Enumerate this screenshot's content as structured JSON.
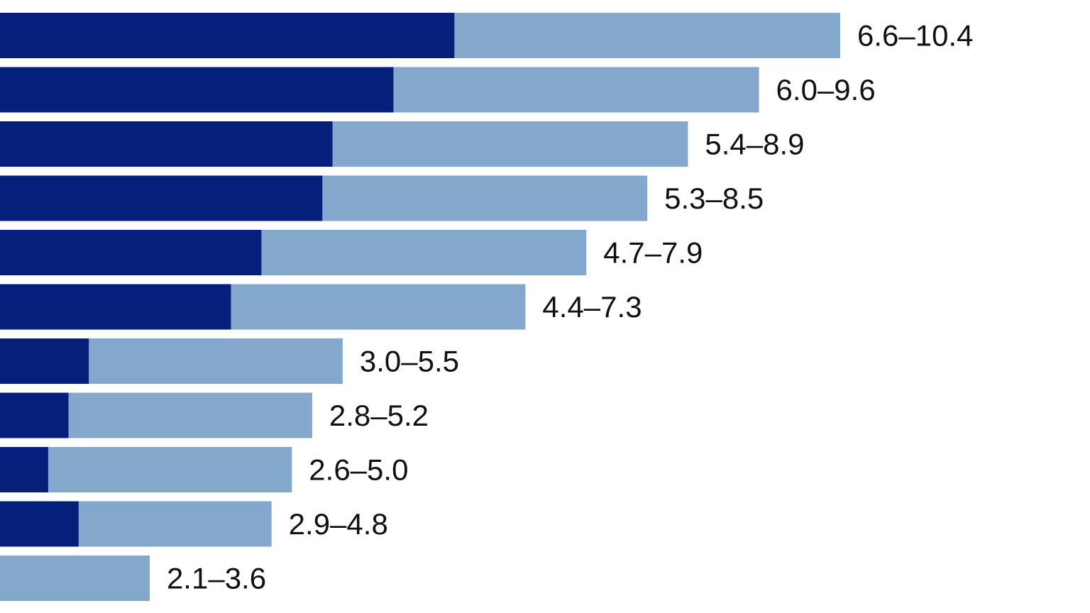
{
  "chart_data": {
    "type": "bar",
    "orientation": "horizontal",
    "stacked": false,
    "title": "",
    "xlabel": "",
    "ylabel": "",
    "grid": false,
    "legend": "none",
    "xlim": [
      2.0,
      10.4
    ],
    "series": [
      {
        "color": "#061f7a",
        "values": [
          6.6,
          6.0,
          5.4,
          5.3,
          4.7,
          4.4,
          3.0,
          2.8,
          2.6,
          2.9,
          2.1
        ]
      },
      {
        "color": "#84a8cb",
        "values": [
          10.4,
          9.6,
          8.9,
          8.5,
          7.9,
          7.3,
          5.5,
          5.2,
          5.0,
          4.8,
          3.6
        ]
      }
    ],
    "data_labels": [
      "6.6–10.4",
      "6.0–9.6",
      "5.4–8.9",
      "5.3–8.5",
      "4.7–7.9",
      "4.4–7.3",
      "3.0–5.5",
      "2.8–5.2",
      "2.6–5.0",
      "2.9–4.8",
      "2.1–3.6"
    ]
  }
}
